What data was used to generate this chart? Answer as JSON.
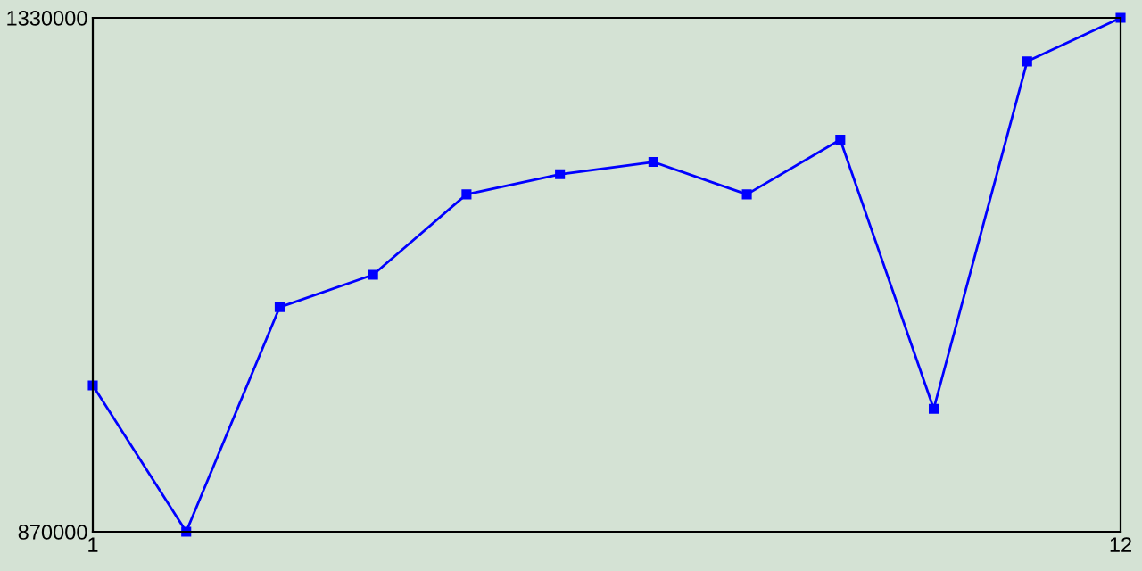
{
  "chart_data": {
    "type": "line",
    "x": [
      1,
      2,
      3,
      4,
      5,
      6,
      7,
      8,
      9,
      10,
      11,
      12
    ],
    "series": [
      {
        "color": "#0000ff",
        "values": [
          1001000,
          870000,
          1071000,
          1100000,
          1172000,
          1190000,
          1201000,
          1172000,
          1221000,
          980000,
          1291000,
          1330000
        ]
      }
    ],
    "xlim": [
      1,
      12
    ],
    "xticks": [
      1,
      12
    ],
    "ylim": [
      870000,
      1330000
    ],
    "yticks": [
      870000,
      1330000
    ],
    "grid": false,
    "marker": "square",
    "line_style": "solid"
  }
}
